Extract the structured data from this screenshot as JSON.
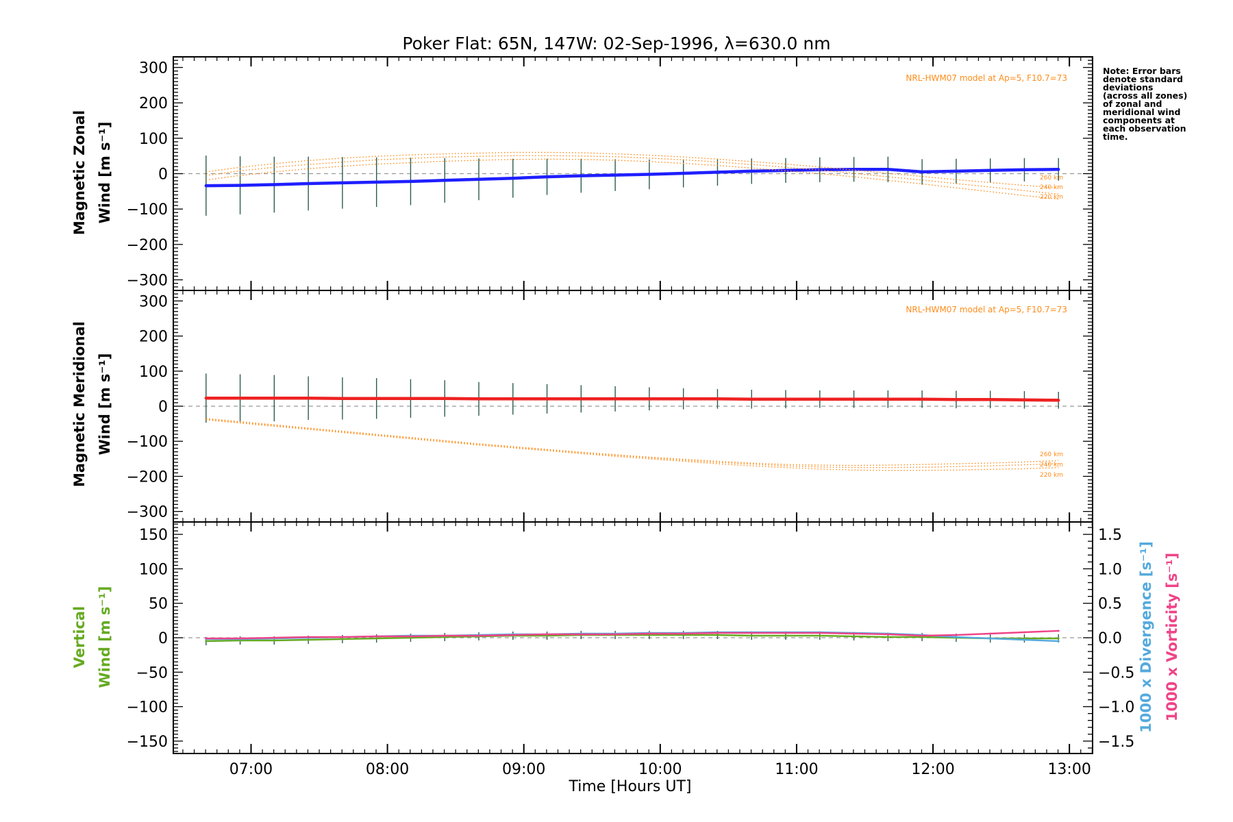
{
  "chart_data": {
    "type": "line",
    "title": "Poker Flat: 65N, 147W: 02-Sep-1996, λ=630.0 nm",
    "xlabel": "Time [Hours UT]",
    "xlim": [
      6.43,
      13.17
    ],
    "xticks": [
      7,
      8,
      9,
      10,
      11,
      12,
      13
    ],
    "xtick_labels": [
      "07:00",
      "08:00",
      "09:00",
      "10:00",
      "11:00",
      "12:00",
      "13:00"
    ],
    "note_lines": [
      "Note: Error bars",
      "denote standard",
      "deviations",
      "(across all zones)",
      "of zonal and",
      "meridional wind",
      "components at",
      "each observation",
      "time."
    ],
    "obs_times": [
      6.67,
      6.92,
      7.17,
      7.42,
      7.67,
      7.92,
      8.17,
      8.42,
      8.67,
      8.92,
      9.17,
      9.42,
      9.67,
      9.92,
      10.17,
      10.42,
      10.67,
      10.92,
      11.17,
      11.42,
      11.67,
      11.92,
      12.17,
      12.42,
      12.67,
      12.92
    ],
    "panels": [
      {
        "name": "zonal",
        "ylabel_lines": [
          "Magnetic Zonal",
          "Wind [m s⁻¹]"
        ],
        "ylim": [
          -330,
          330
        ],
        "yticks": [
          300,
          200,
          100,
          0,
          -100,
          -200,
          -300
        ],
        "ytick_labels": [
          "300",
          "200",
          "100",
          "0",
          "−100",
          "−200",
          "−300"
        ],
        "model_label": "NRL-HWM07 model at Ap=5, F10.7=73",
        "altitude_labels": [
          "260 km",
          "240 km",
          "220 km"
        ],
        "series": [
          {
            "name": "Zonal wind",
            "color": "#1f1fff",
            "values": [
              -34,
              -33,
              -31,
              -28,
              -26,
              -24,
              -22,
              -19,
              -16,
              -13,
              -9,
              -6,
              -4,
              -2,
              1,
              4,
              7,
              9,
              11,
              12,
              12,
              5,
              7,
              9,
              11,
              12
            ],
            "errors": [
              85,
              82,
              79,
              76,
              73,
              70,
              67,
              63,
              59,
              55,
              51,
              48,
              45,
              42,
              40,
              38,
              36,
              35,
              35,
              35,
              36,
              36,
              35,
              34,
              33,
              32
            ]
          },
          {
            "name": "HWM07 260 km",
            "color": "#ff8c1a",
            "values": [
              5,
              18,
              28,
              37,
              44,
              49,
              53,
              56,
              58,
              60,
              60,
              59,
              56,
              52,
              47,
              41,
              34,
              27,
              19,
              10,
              1,
              -8,
              -17,
              -25,
              -33,
              -40
            ]
          },
          {
            "name": "HWM07 240 km",
            "color": "#ff8c1a",
            "values": [
              -5,
              8,
              18,
              26,
              33,
              39,
              43,
              47,
              49,
              51,
              51,
              50,
              48,
              44,
              39,
              33,
              26,
              18,
              10,
              1,
              -9,
              -18,
              -28,
              -38,
              -48,
              -58
            ]
          },
          {
            "name": "HWM07 220 km",
            "color": "#ff8c1a",
            "values": [
              -18,
              -5,
              5,
              14,
              21,
              27,
              31,
              35,
              38,
              40,
              41,
              40,
              38,
              34,
              29,
              23,
              16,
              8,
              0,
              -9,
              -19,
              -29,
              -40,
              -51,
              -62,
              -72
            ]
          }
        ]
      },
      {
        "name": "meridional",
        "ylabel_lines": [
          "Magnetic Meridional",
          "Wind [m s⁻¹]"
        ],
        "ylim": [
          -330,
          330
        ],
        "yticks": [
          300,
          200,
          100,
          0,
          -100,
          -200,
          -300
        ],
        "ytick_labels": [
          "300",
          "200",
          "100",
          "0",
          "−100",
          "−200",
          "−300"
        ],
        "model_label": "NRL-HWM07 model at Ap=5, F10.7=73",
        "altitude_labels": [
          "260 km",
          "240 km",
          "220 km"
        ],
        "series": [
          {
            "name": "Meridional wind",
            "color": "#ee2222",
            "values": [
              23,
              23,
              23,
              23,
              22,
              22,
              22,
              22,
              21,
              21,
              21,
              21,
              21,
              21,
              21,
              21,
              20,
              20,
              20,
              20,
              20,
              20,
              19,
              19,
              18,
              17
            ],
            "errors": [
              70,
              68,
              66,
              62,
              60,
              58,
              55,
              52,
              48,
              45,
              42,
              39,
              36,
              33,
              30,
              28,
              27,
              26,
              25,
              25,
              25,
              25,
              25,
              25,
              25,
              24
            ]
          },
          {
            "name": "HWM07 260 km",
            "color": "#ff8c1a",
            "values": [
              -35,
              -44,
              -53,
              -62,
              -71,
              -80,
              -89,
              -98,
              -107,
              -115,
              -123,
              -131,
              -138,
              -145,
              -151,
              -157,
              -162,
              -166,
              -168,
              -169,
              -168,
              -166,
              -164,
              -162,
              -159,
              -155
            ]
          },
          {
            "name": "HWM07 240 km",
            "color": "#ff8c1a",
            "values": [
              -37,
              -46,
              -55,
              -64,
              -73,
              -82,
              -91,
              -100,
              -109,
              -117,
              -125,
              -133,
              -140,
              -147,
              -154,
              -160,
              -165,
              -170,
              -173,
              -175,
              -175,
              -174,
              -172,
              -170,
              -167,
              -164
            ]
          },
          {
            "name": "HWM07 220 km",
            "color": "#ff8c1a",
            "values": [
              -39,
              -48,
              -57,
              -66,
              -75,
              -84,
              -93,
              -102,
              -111,
              -119,
              -127,
              -135,
              -143,
              -150,
              -157,
              -164,
              -170,
              -175,
              -179,
              -182,
              -183,
              -183,
              -182,
              -180,
              -178,
              -175
            ]
          }
        ]
      },
      {
        "name": "vertical",
        "ylabel_lines": [
          "Vertical",
          "Wind [m s⁻¹]"
        ],
        "ylabel_color": "#66aa22",
        "ylim": [
          -168,
          168
        ],
        "yticks": [
          150,
          100,
          50,
          0,
          -50,
          -100,
          -150
        ],
        "ytick_labels": [
          "150",
          "100",
          "50",
          "0",
          "−50",
          "−100",
          "−150"
        ],
        "y2lim": [
          -1.68,
          1.68
        ],
        "y2ticks": [
          1.5,
          1.0,
          0.5,
          0.0,
          -0.5,
          -1.0,
          -1.5
        ],
        "y2tick_labels": [
          "1.5",
          "1.0",
          "0.5",
          "0.0",
          "−0.5",
          "−1.0",
          "−1.5"
        ],
        "y2label_divergence": "1000 x Divergence [s⁻¹]",
        "y2label_vorticity": "1000 x Vorticity [s⁻¹]",
        "divergence_color": "#55aadd",
        "vorticity_color": "#ee4488",
        "series": [
          {
            "name": "Vertical wind",
            "color": "#66aa22",
            "axis": "left",
            "values": [
              -5,
              -4,
              -4,
              -3,
              -2,
              -1,
              0,
              1,
              2,
              3,
              3,
              4,
              4,
              4,
              4,
              4,
              3,
              3,
              3,
              2,
              1,
              1,
              0,
              -1,
              -1,
              -1
            ],
            "errors": [
              6,
              6,
              6,
              6,
              6,
              6,
              6,
              6,
              6,
              6,
              6,
              6,
              6,
              6,
              6,
              6,
              6,
              6,
              6,
              6,
              6,
              6,
              6,
              6,
              6,
              6
            ]
          },
          {
            "name": "1000 x Divergence",
            "color": "#55aadd",
            "axis": "right",
            "values": [
              -0.02,
              -0.02,
              -0.01,
              0.0,
              0.01,
              0.02,
              0.03,
              0.03,
              0.04,
              0.05,
              0.05,
              0.06,
              0.06,
              0.07,
              0.07,
              0.08,
              0.08,
              0.08,
              0.08,
              0.07,
              0.06,
              0.04,
              0.01,
              -0.01,
              -0.03,
              -0.05
            ]
          },
          {
            "name": "1000 x Vorticity",
            "color": "#ee4488",
            "axis": "right",
            "values": [
              -0.01,
              -0.01,
              0.0,
              0.01,
              0.01,
              0.02,
              0.02,
              0.03,
              0.03,
              0.04,
              0.05,
              0.05,
              0.05,
              0.06,
              0.06,
              0.07,
              0.07,
              0.07,
              0.07,
              0.06,
              0.05,
              0.03,
              0.04,
              0.06,
              0.08,
              0.1
            ]
          }
        ]
      }
    ]
  }
}
